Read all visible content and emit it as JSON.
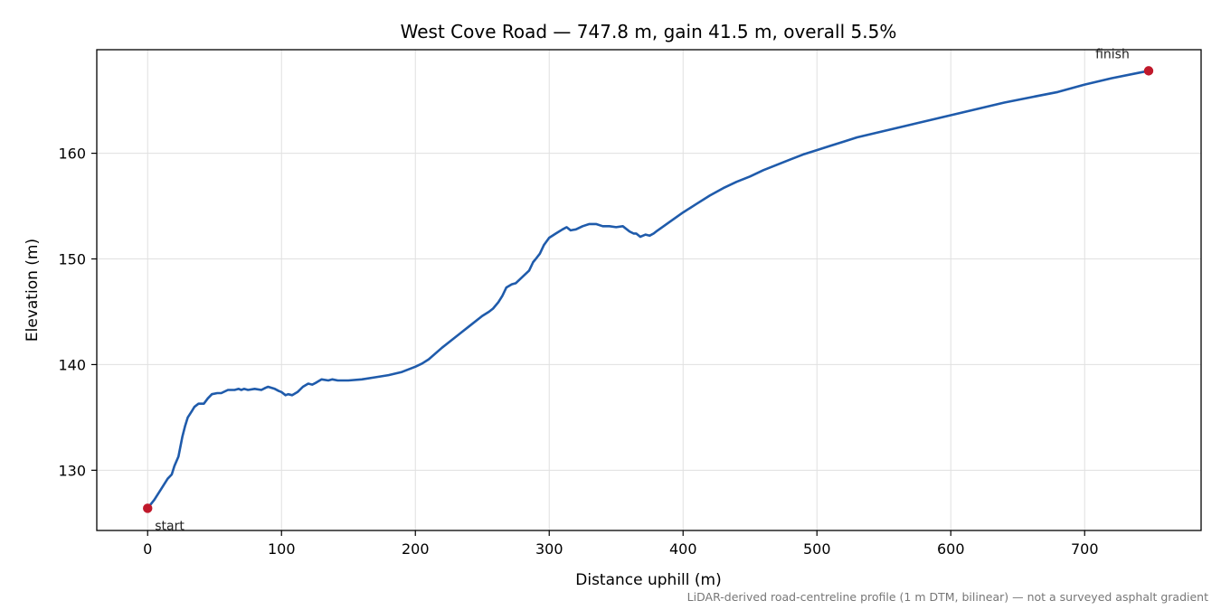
{
  "chart_data": {
    "type": "line",
    "title": "West Cove Road — 747.8 m, gain 41.5 m, overall 5.5%",
    "xlabel": "Distance uphill (m)",
    "ylabel": "Elevation (m)",
    "xlim": [
      -38,
      787
    ],
    "ylim": [
      124.3,
      169.8
    ],
    "xticks": [
      0,
      100,
      200,
      300,
      400,
      500,
      600,
      700
    ],
    "yticks": [
      130,
      140,
      150,
      160
    ],
    "grid": true,
    "colors": {
      "line": "#1f5bab",
      "marker": "#c0192b",
      "grid": "#e0e0e0"
    },
    "series": [
      {
        "x": [
          0,
          5,
          10,
          15,
          18,
          20,
          23,
          26,
          28,
          30,
          33,
          35,
          38,
          42,
          45,
          48,
          52,
          55,
          60,
          65,
          68,
          70,
          72,
          75,
          80,
          85,
          88,
          90,
          95,
          98,
          100,
          103,
          105,
          108,
          112,
          116,
          120,
          123,
          126,
          130,
          135,
          138,
          142,
          150,
          160,
          170,
          180,
          190,
          200,
          205,
          210,
          220,
          230,
          240,
          250,
          255,
          258,
          262,
          265,
          268,
          272,
          275,
          280,
          285,
          288,
          290,
          293,
          296,
          300,
          305,
          310,
          313,
          316,
          320,
          325,
          330,
          335,
          340,
          345,
          350,
          355,
          360,
          363,
          365,
          368,
          370,
          372,
          375,
          378,
          380,
          390,
          400,
          410,
          420,
          430,
          440,
          450,
          460,
          470,
          480,
          490,
          500,
          510,
          520,
          530,
          540,
          550,
          560,
          570,
          580,
          590,
          600,
          620,
          640,
          660,
          680,
          700,
          720,
          740,
          747.8
        ],
        "y": [
          126.4,
          127.2,
          128.2,
          129.2,
          129.6,
          130.4,
          131.3,
          133.2,
          134.2,
          135.0,
          135.6,
          136.0,
          136.3,
          136.3,
          136.8,
          137.2,
          137.3,
          137.3,
          137.6,
          137.6,
          137.7,
          137.6,
          137.7,
          137.6,
          137.7,
          137.6,
          137.8,
          137.9,
          137.7,
          137.5,
          137.4,
          137.1,
          137.2,
          137.1,
          137.4,
          137.9,
          138.2,
          138.1,
          138.3,
          138.6,
          138.5,
          138.6,
          138.5,
          138.5,
          138.6,
          138.8,
          139.0,
          139.3,
          139.8,
          140.1,
          140.5,
          141.6,
          142.6,
          143.6,
          144.6,
          145.0,
          145.3,
          145.9,
          146.5,
          147.3,
          147.6,
          147.7,
          148.3,
          148.9,
          149.7,
          150.0,
          150.5,
          151.3,
          152.0,
          152.4,
          152.8,
          153.0,
          152.7,
          152.8,
          153.1,
          153.3,
          153.3,
          153.1,
          153.1,
          153.0,
          153.1,
          152.6,
          152.4,
          152.4,
          152.1,
          152.2,
          152.3,
          152.2,
          152.4,
          152.6,
          153.5,
          154.4,
          155.2,
          156.0,
          156.7,
          157.3,
          157.8,
          158.4,
          158.9,
          159.4,
          159.9,
          160.3,
          160.7,
          161.1,
          161.5,
          161.8,
          162.1,
          162.4,
          162.7,
          163.0,
          163.3,
          163.6,
          164.2,
          164.8,
          165.3,
          165.8,
          166.5,
          167.1,
          167.6,
          167.8
        ]
      }
    ],
    "annotations": [
      {
        "text": "start",
        "x": 0,
        "y": 126.4
      },
      {
        "text": "finish",
        "x": 747.8,
        "y": 167.8
      }
    ],
    "footnote": "LiDAR-derived road-centreline profile (1 m DTM, bilinear) — not a surveyed asphalt gradient"
  }
}
